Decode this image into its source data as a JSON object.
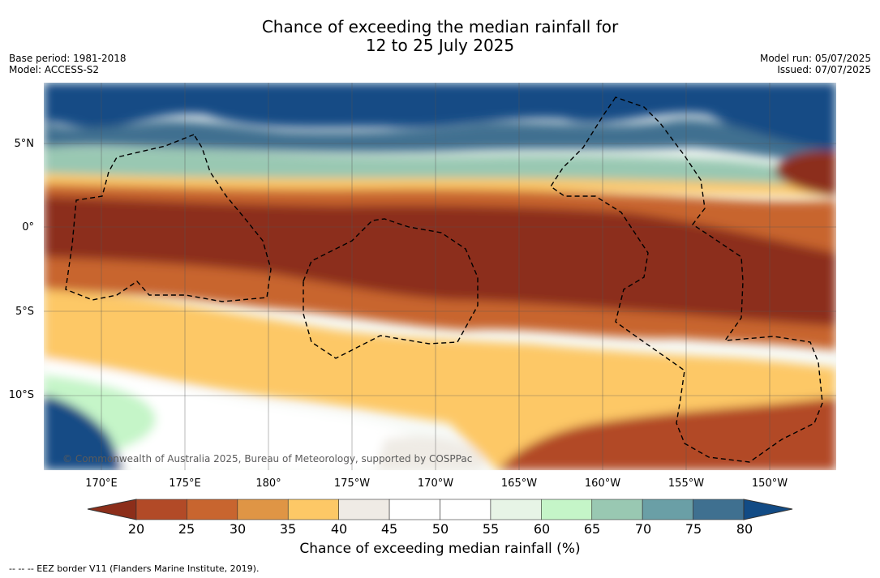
{
  "title": {
    "line1": "Chance of exceeding the median rainfall for",
    "line2": "12 to 25 July 2025"
  },
  "meta_left": {
    "base_period": "Base period: 1981-2018",
    "model": "Model: ACCESS-S2"
  },
  "meta_right": {
    "model_run": "Model run: 05/07/2025",
    "issued": "Issued: 07/07/2025"
  },
  "map": {
    "lat_labels": [
      "5°N",
      "0°",
      "5°S",
      "10°S"
    ],
    "lon_labels": [
      "170°E",
      "175°E",
      "180°",
      "175°W",
      "170°W",
      "165°W",
      "160°W",
      "155°W",
      "150°W"
    ],
    "copyright": "© Commonwealth of Australia 2025, Bureau of Meteorology, supported by COSPPac",
    "background_color": "#f7faf7"
  },
  "colorbar": {
    "title": "Chance of exceeding median rainfall (%)",
    "ticks": [
      "20",
      "25",
      "30",
      "35",
      "40",
      "45",
      "50",
      "55",
      "60",
      "65",
      "70",
      "75",
      "80"
    ],
    "colors": [
      "#8c2e1a",
      "#b24a27",
      "#c8652f",
      "#df9545",
      "#fdc866",
      "#efebe5",
      "#ffffff",
      "#ffffff",
      "#e7f4e6",
      "#c5f5c8",
      "#99c8b2",
      "#6a9fa6",
      "#3f7090"
    ],
    "low_color": "#8c2e1a",
    "high_color": "#124b85"
  },
  "footnote": "-- -- -- EEZ border V11 (Flanders Marine Institute, 2019)."
}
